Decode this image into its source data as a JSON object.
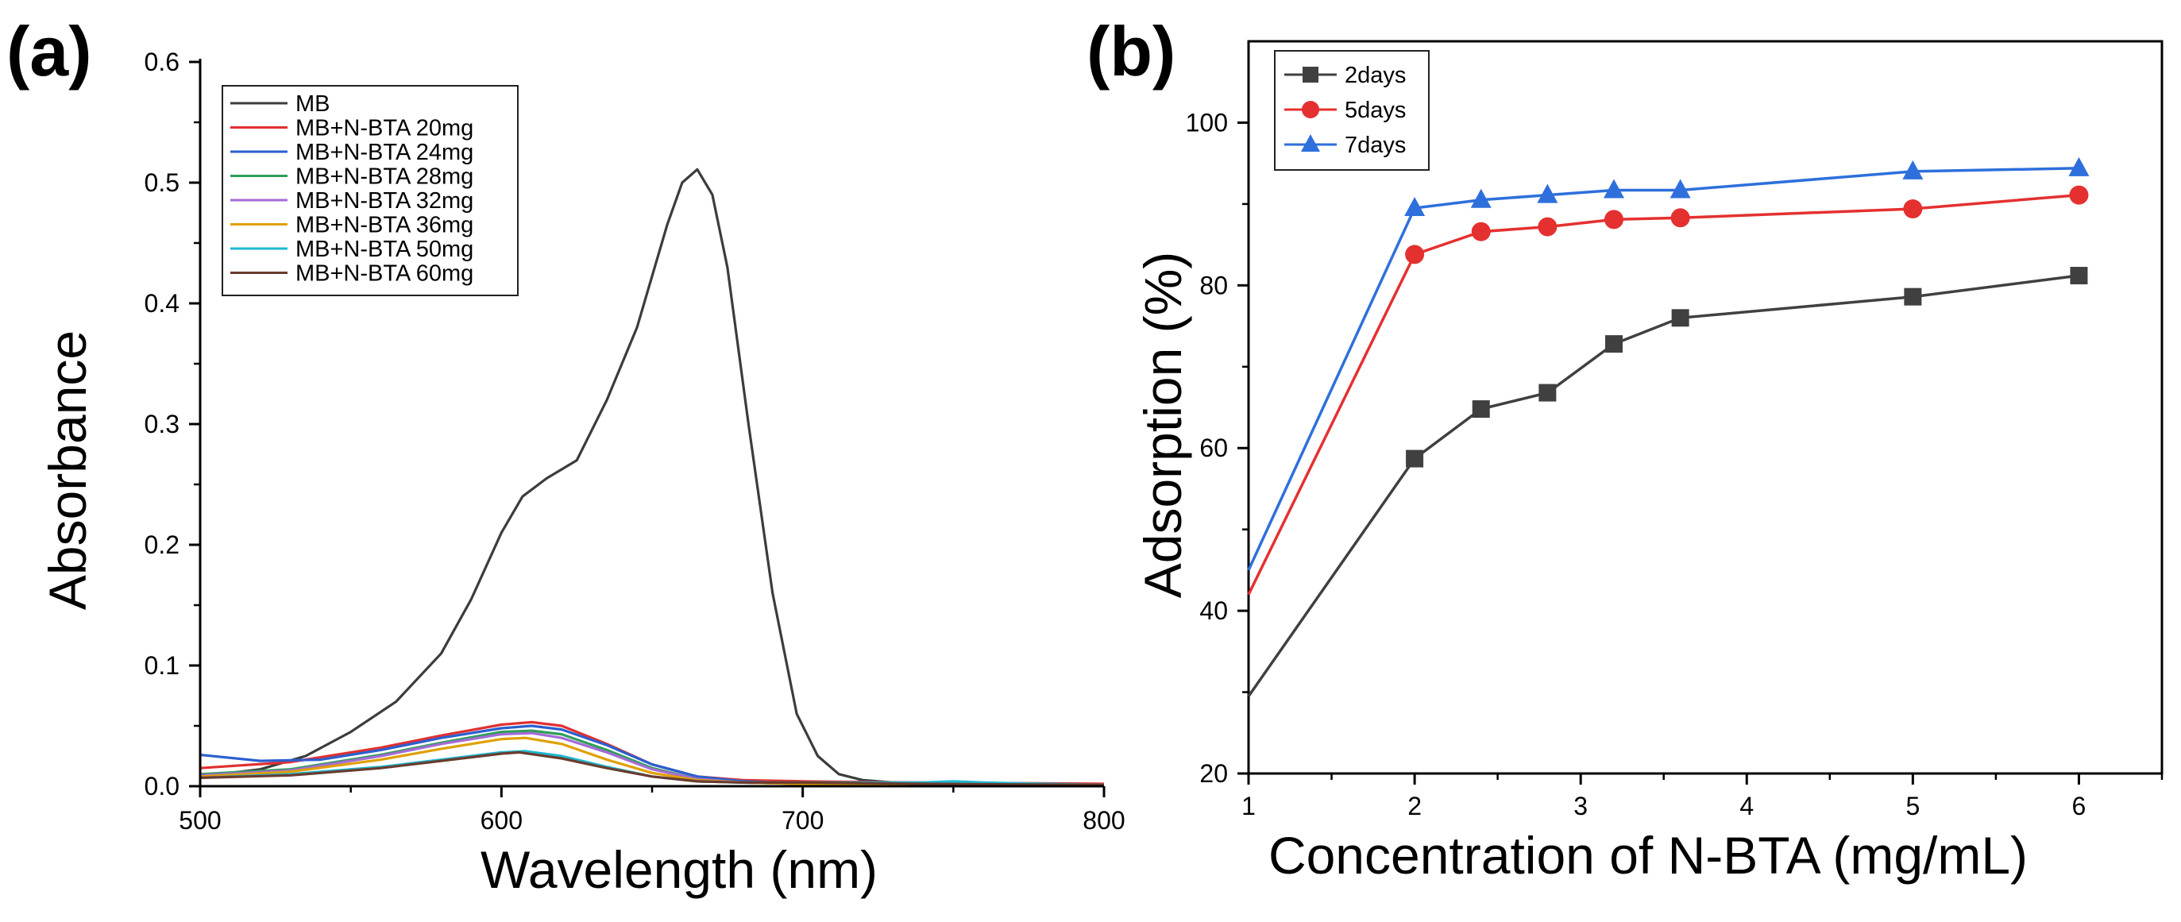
{
  "chart_data": [
    {
      "panel_label": "(a)",
      "type": "line",
      "title": "",
      "xlabel": "Wavelength (nm)",
      "ylabel": "Absorbance",
      "xlim": [
        500,
        800
      ],
      "ylim": [
        0,
        0.6
      ],
      "xticks": [
        "500",
        "600",
        "700",
        "800"
      ],
      "yticks": [
        "0.0",
        "0.1",
        "0.2",
        "0.3",
        "0.4",
        "0.5",
        "0.6"
      ],
      "legend_position": "top-left",
      "series": [
        {
          "name": "MB",
          "color": "#3c3c3c",
          "x": [
            500,
            520,
            535,
            550,
            565,
            580,
            590,
            600,
            607,
            615,
            625,
            635,
            645,
            655,
            660,
            665,
            670,
            675,
            682,
            690,
            698,
            705,
            712,
            720,
            730,
            745,
            760,
            780,
            800
          ],
          "y": [
            0.008,
            0.014,
            0.025,
            0.045,
            0.07,
            0.11,
            0.155,
            0.21,
            0.24,
            0.255,
            0.27,
            0.32,
            0.38,
            0.465,
            0.5,
            0.511,
            0.49,
            0.43,
            0.3,
            0.16,
            0.06,
            0.025,
            0.01,
            0.005,
            0.003,
            0.002,
            0.002,
            0.001,
            0.001
          ]
        },
        {
          "name": "MB+N-BTA 20mg",
          "color": "#e03030",
          "x": [
            500,
            530,
            560,
            580,
            600,
            610,
            620,
            635,
            650,
            665,
            680,
            700,
            740,
            800
          ],
          "y": [
            0.015,
            0.02,
            0.032,
            0.042,
            0.051,
            0.053,
            0.05,
            0.035,
            0.018,
            0.008,
            0.005,
            0.004,
            0.003,
            0.002
          ]
        },
        {
          "name": "MB+N-BTA 24mg",
          "color": "#2a5fd0",
          "x": [
            500,
            520,
            540,
            560,
            580,
            600,
            610,
            620,
            635,
            650,
            665,
            680,
            700,
            740,
            800
          ],
          "y": [
            0.026,
            0.021,
            0.022,
            0.03,
            0.04,
            0.048,
            0.05,
            0.047,
            0.034,
            0.018,
            0.008,
            0.004,
            0.002,
            0.001,
            0.0
          ]
        },
        {
          "name": "MB+N-BTA 28mg",
          "color": "#2e9e5a",
          "x": [
            500,
            530,
            560,
            580,
            600,
            610,
            620,
            635,
            650,
            665,
            680,
            700,
            740,
            800
          ],
          "y": [
            0.01,
            0.014,
            0.026,
            0.036,
            0.045,
            0.046,
            0.043,
            0.03,
            0.015,
            0.006,
            0.003,
            0.002,
            0.002,
            0.001
          ]
        },
        {
          "name": "MB+N-BTA 32mg",
          "color": "#a56bd6",
          "x": [
            500,
            530,
            560,
            580,
            600,
            610,
            620,
            635,
            650,
            665,
            680,
            700,
            740,
            800
          ],
          "y": [
            0.009,
            0.013,
            0.025,
            0.035,
            0.043,
            0.044,
            0.04,
            0.028,
            0.014,
            0.006,
            0.003,
            0.002,
            0.001,
            0.001
          ]
        },
        {
          "name": "MB+N-BTA 36mg",
          "color": "#e0a000",
          "x": [
            500,
            530,
            560,
            580,
            600,
            608,
            620,
            635,
            650,
            665,
            680,
            700,
            740,
            800
          ],
          "y": [
            0.008,
            0.012,
            0.022,
            0.031,
            0.039,
            0.04,
            0.035,
            0.022,
            0.011,
            0.005,
            0.003,
            0.002,
            0.001,
            0.001
          ]
        },
        {
          "name": "MB+N-BTA 50mg",
          "color": "#1fb8d0",
          "x": [
            500,
            530,
            560,
            580,
            600,
            608,
            620,
            635,
            650,
            665,
            680,
            700,
            720,
            740,
            750,
            760,
            780,
            800
          ],
          "y": [
            0.007,
            0.01,
            0.016,
            0.022,
            0.028,
            0.029,
            0.025,
            0.016,
            0.008,
            0.004,
            0.003,
            0.003,
            0.003,
            0.003,
            0.004,
            0.003,
            0.002,
            0.001
          ]
        },
        {
          "name": "MB+N-BTA 60mg",
          "color": "#6b3b2e",
          "x": [
            500,
            530,
            560,
            580,
            600,
            606,
            620,
            635,
            650,
            665,
            680,
            700,
            740,
            800
          ],
          "y": [
            0.007,
            0.009,
            0.015,
            0.021,
            0.027,
            0.028,
            0.023,
            0.015,
            0.008,
            0.004,
            0.003,
            0.003,
            0.002,
            0.001
          ]
        }
      ]
    },
    {
      "panel_label": "(b)",
      "type": "line",
      "title": "",
      "xlabel": "Concentration of N-BTA (mg/mL)",
      "ylabel": "Adsorption (%)",
      "xlim": [
        1,
        6.5
      ],
      "ylim": [
        20,
        110
      ],
      "xticks": [
        "1",
        "2",
        "3",
        "4",
        "5",
        "6"
      ],
      "yticks": [
        "20",
        "40",
        "60",
        "80",
        "100"
      ],
      "legend_position": "top-left",
      "x": [
        1,
        2,
        2.4,
        2.8,
        3.2,
        3.6,
        5,
        6
      ],
      "series": [
        {
          "name": "2days",
          "color": "#404040",
          "marker": "square",
          "values": [
            29.5,
            58.7,
            64.8,
            66.8,
            72.8,
            76.0,
            78.6,
            81.2
          ]
        },
        {
          "name": "5days",
          "color": "#e53030",
          "marker": "circle",
          "values": [
            42.0,
            83.8,
            86.6,
            87.2,
            88.1,
            88.3,
            89.4,
            91.1
          ]
        },
        {
          "name": "7days",
          "color": "#2e6fdc",
          "marker": "triangle",
          "values": [
            45.0,
            89.5,
            90.5,
            91.1,
            91.7,
            91.7,
            94.0,
            94.4
          ]
        }
      ]
    }
  ]
}
